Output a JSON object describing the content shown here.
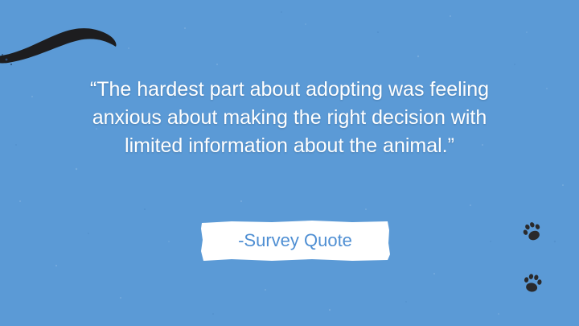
{
  "slide": {
    "background_color": "#5b9ad6",
    "quote_text": "“The hardest part about adopting was feeling anxious about making the right decision with limited information about the animal.”",
    "attribution": "-Survey Quote",
    "attribution_box_color": "#ffffff",
    "attribution_text_color": "#4f8fd3",
    "decorations": [
      "cat-tail-icon",
      "paw-print-icon",
      "paw-print-icon"
    ]
  }
}
